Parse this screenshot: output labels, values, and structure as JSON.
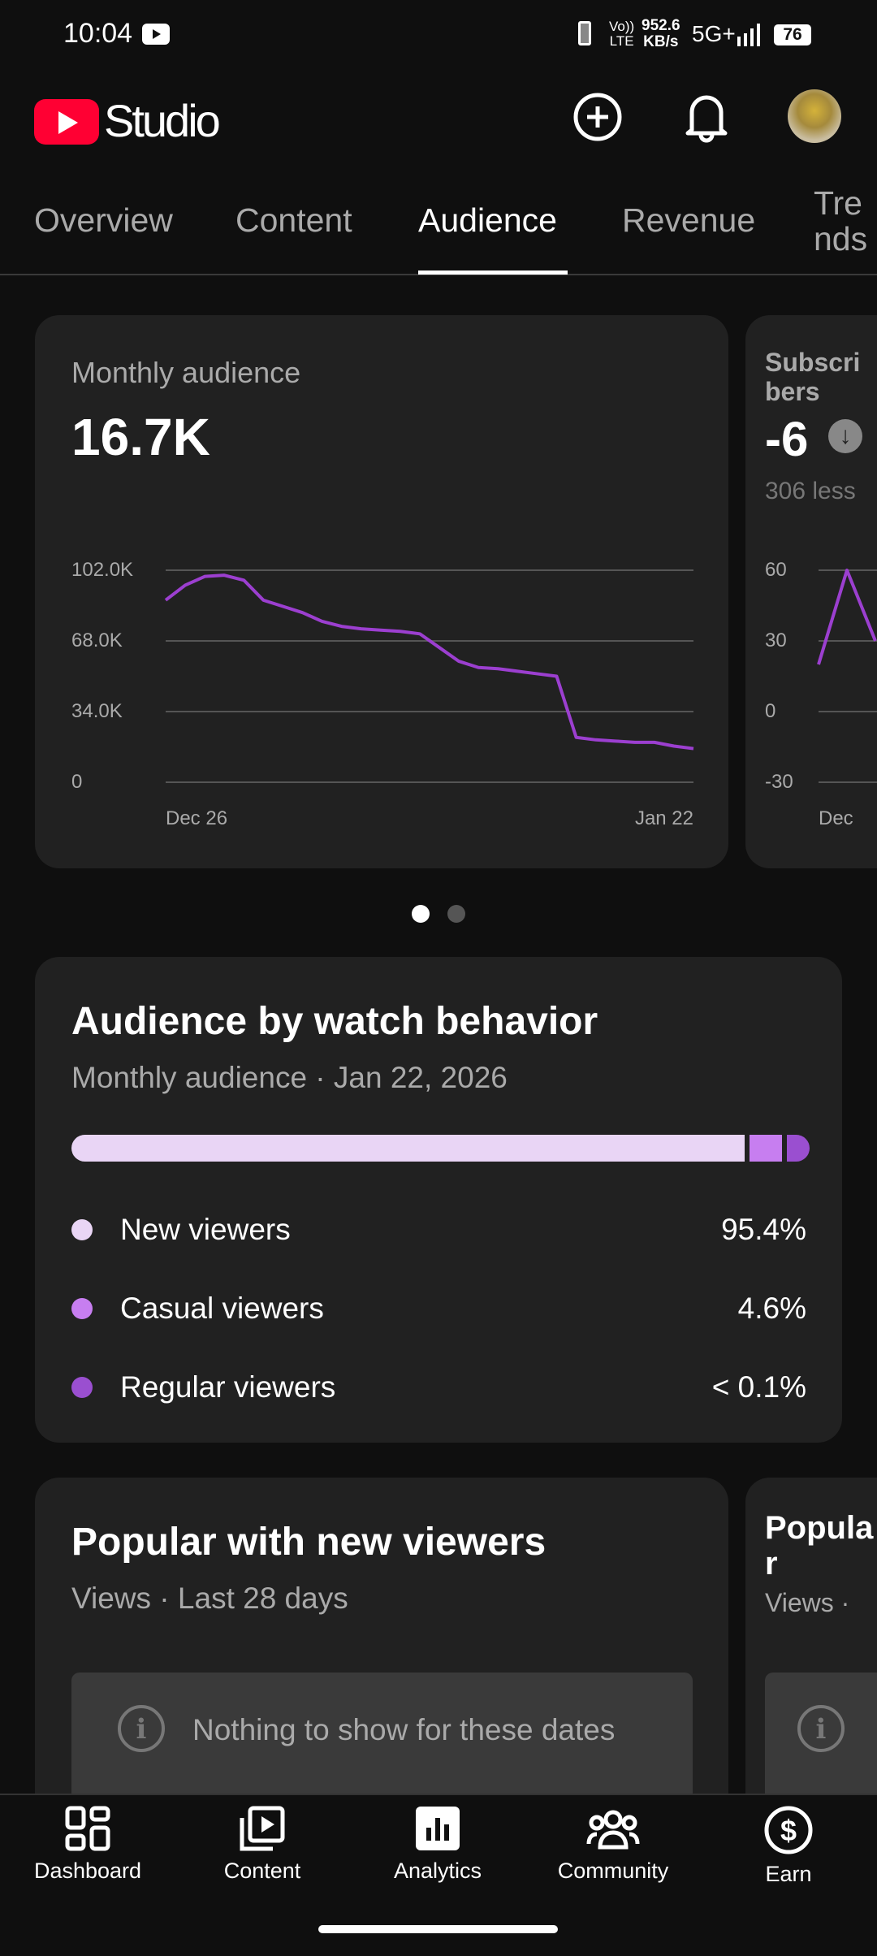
{
  "status_bar": {
    "time": "10:04",
    "speed": "952.6",
    "speed_unit": "KB/s",
    "network": "5G+",
    "volte": "Vo))",
    "lte": "LTE",
    "battery": "76"
  },
  "header": {
    "logo_text": "Studio",
    "brand_color": "#ff0033"
  },
  "tabs": [
    {
      "label": "Overview",
      "active": false
    },
    {
      "label": "Content",
      "active": false
    },
    {
      "label": "Audience",
      "active": true
    },
    {
      "label": "Revenue",
      "active": false
    },
    {
      "label": "Trends",
      "active": false
    }
  ],
  "carousel": {
    "cards": [
      {
        "title": "Monthly audience",
        "value": "16.7K",
        "chart_data": {
          "type": "line",
          "x_labels": [
            "Dec 26",
            "Jan 22"
          ],
          "y_ticks": [
            "102.0K",
            "68.0K",
            "34.0K",
            "0"
          ],
          "ylim": [
            0,
            102000
          ],
          "series_color": "#9c3fd0",
          "values": [
            87600,
            94800,
            99000,
            99600,
            97200,
            87600,
            84600,
            81600,
            77400,
            75000,
            73800,
            73200,
            72600,
            71400,
            64800,
            58200,
            55200,
            54600,
            53400,
            52200,
            51000,
            21600,
            20400,
            19800,
            19200,
            19200,
            17400,
            16200
          ]
        }
      },
      {
        "title": "Subscribers",
        "value": "-6",
        "trend_icon": "arrow-down-circle-icon",
        "subtitle": "306 less",
        "chart_data": {
          "type": "line",
          "x_labels": [
            "Dec"
          ],
          "y_ticks": [
            "60",
            "30",
            "0",
            "-30"
          ],
          "ylim": [
            -30,
            60
          ],
          "series_color": "#9c3fd0",
          "values": [
            20,
            60,
            30
          ]
        }
      }
    ],
    "active_page": 1,
    "page_count": 2
  },
  "watch_behavior": {
    "title": "Audience by watch behavior",
    "subtitle": "Monthly audience · Jan 22, 2026",
    "items": [
      {
        "label": "New viewers",
        "value": "95.4%",
        "share": 95.4,
        "color": "#e9d5f5"
      },
      {
        "label": "Casual viewers",
        "value": "4.6%",
        "share": 4.6,
        "color": "#c77ef0"
      },
      {
        "label": "Regular viewers",
        "value": "< 0.1%",
        "share": 0.1,
        "color": "#9a4fd0"
      }
    ]
  },
  "popular": [
    {
      "title": "Popular with new viewers",
      "subtitle": "Views · Last 28 days",
      "empty_text": "Nothing to show for these dates"
    },
    {
      "title": "Popular",
      "subtitle": "Views ·"
    }
  ],
  "bottom_nav": [
    {
      "label": "Dashboard",
      "icon": "dashboard-icon",
      "active": false
    },
    {
      "label": "Content",
      "icon": "content-icon",
      "active": false
    },
    {
      "label": "Analytics",
      "icon": "analytics-icon",
      "active": true
    },
    {
      "label": "Community",
      "icon": "community-icon",
      "active": false
    },
    {
      "label": "Earn",
      "icon": "dollar-icon",
      "active": false
    }
  ]
}
